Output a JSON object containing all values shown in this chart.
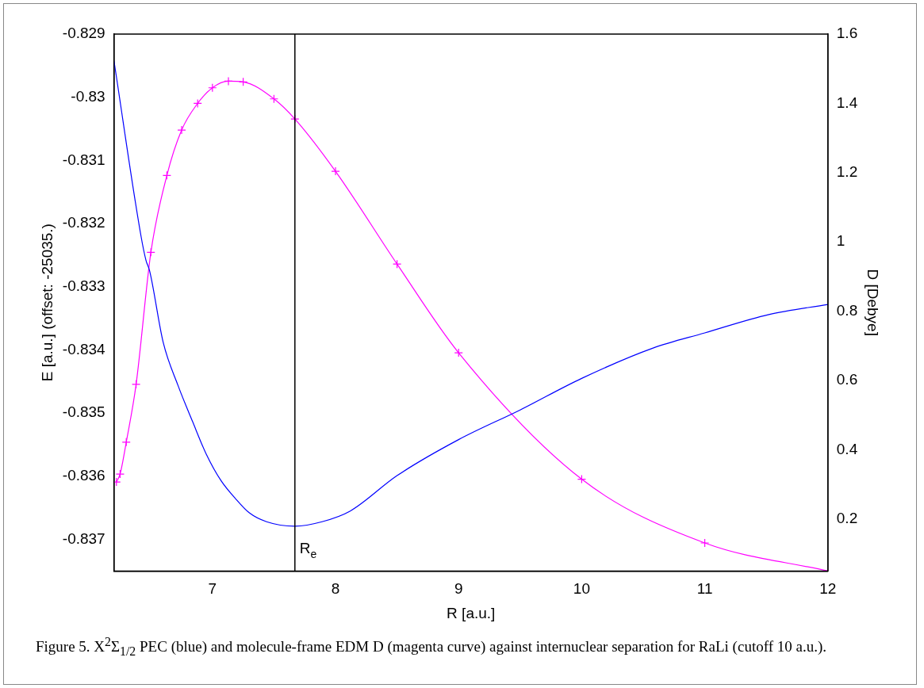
{
  "chart_data": {
    "type": "line",
    "xlabel": "R [a.u.]",
    "ylabel": "E [a.u.] (offset: -25035.)",
    "y2label": "D [Debye]",
    "xlim": [
      6.2,
      12
    ],
    "xticks": [
      7,
      8,
      9,
      10,
      11,
      12
    ],
    "ylim": [
      -0.8375,
      -0.829
    ],
    "yticks": [
      -0.829,
      -0.83,
      -0.831,
      -0.832,
      -0.833,
      -0.834,
      -0.835,
      -0.836,
      -0.837
    ],
    "y2lim": [
      0.05,
      1.6
    ],
    "y2ticks": [
      0.2,
      0.4,
      0.6,
      0.8,
      1,
      1.2,
      1.4,
      1.6
    ],
    "grid": false,
    "legend": false,
    "series": [
      {
        "type": "line",
        "axis": "y",
        "color": "#0000ff",
        "marker": "none",
        "x": [
          6.2,
          6.42,
          6.46,
          6.49,
          6.6,
          6.72,
          6.84,
          6.95,
          7.07,
          7.19,
          7.3,
          7.44,
          7.67,
          7.89,
          8.12,
          8.5,
          9,
          9.5,
          10,
          10.58,
          11,
          11.52,
          12
        ],
        "values": [
          -0.82942,
          -0.8322,
          -0.83258,
          -0.83275,
          -0.83388,
          -0.83456,
          -0.83514,
          -0.83565,
          -0.83607,
          -0.83636,
          -0.83658,
          -0.83672,
          -0.83679,
          -0.83672,
          -0.83655,
          -0.83599,
          -0.83542,
          -0.83495,
          -0.83445,
          -0.83397,
          -0.83373,
          -0.83344,
          -0.83328
        ]
      },
      {
        "type": "line",
        "axis": "y2",
        "color": "#ff00ff",
        "marker": "cross",
        "x": [
          6.22,
          6.25,
          6.3,
          6.38,
          6.5,
          6.63,
          6.75,
          6.88,
          7,
          7.13,
          7.25,
          7.5,
          7.67,
          8,
          8.5,
          9,
          10,
          11,
          12
        ],
        "values": [
          0.307,
          0.33,
          0.422,
          0.589,
          0.97,
          1.192,
          1.323,
          1.4,
          1.445,
          1.464,
          1.462,
          1.413,
          1.355,
          1.204,
          0.936,
          0.68,
          0.315,
          0.131,
          0.05
        ]
      }
    ],
    "ref_lines": [
      {
        "axis": "x",
        "value": 7.67,
        "label": "R$_{e}$",
        "color": "#000000"
      }
    ],
    "annotations": [
      "Figure 5.  X$^{2}$Σ$_{1/2}$ PEC (blue) and molecule-frame EDM D (magenta curve) against internuclear separation for RaLi (cutoff 10 a.u.)."
    ]
  }
}
